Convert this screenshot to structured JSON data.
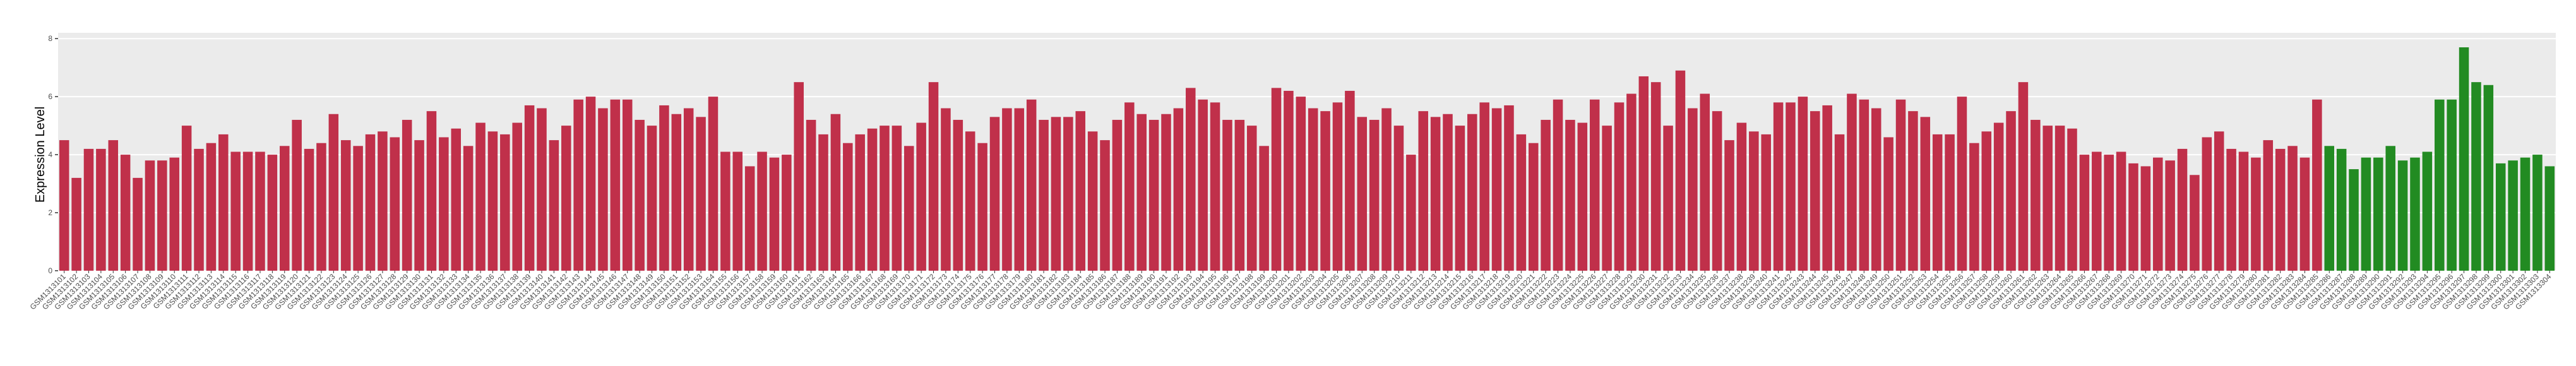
{
  "chart_data": {
    "type": "bar",
    "ylabel": "Expression Level",
    "categories": [
      "GSM1313101",
      "GSM1313102",
      "GSM1313103",
      "GSM1313104",
      "GSM1313105",
      "GSM1313106",
      "GSM1313107",
      "GSM1313108",
      "GSM1313109",
      "GSM1313110",
      "GSM1313111",
      "GSM1313112",
      "GSM1313113",
      "GSM1313114",
      "GSM1313115",
      "GSM1313116",
      "GSM1313117",
      "GSM1313118",
      "GSM1313119",
      "GSM1313120",
      "GSM1313121",
      "GSM1313122",
      "GSM1313123",
      "GSM1313124",
      "GSM1313125",
      "GSM1313126",
      "GSM1313127",
      "GSM1313128",
      "GSM1313129",
      "GSM1313130",
      "GSM1313131",
      "GSM1313132",
      "GSM1313133",
      "GSM1313134",
      "GSM1313135",
      "GSM1313136",
      "GSM1313137",
      "GSM1313138",
      "GSM1313139",
      "GSM1313140",
      "GSM1313141",
      "GSM1313142",
      "GSM1313143",
      "GSM1313144",
      "GSM1313145",
      "GSM1313146",
      "GSM1313147",
      "GSM1313148",
      "GSM1313149",
      "GSM1313150",
      "GSM1313151",
      "GSM1313152",
      "GSM1313153",
      "GSM1313154",
      "GSM1313155",
      "GSM1313156",
      "GSM1313157",
      "GSM1313158",
      "GSM1313159",
      "GSM1313160",
      "GSM1313161",
      "GSM1313162",
      "GSM1313163",
      "GSM1313164",
      "GSM1313165",
      "GSM1313166",
      "GSM1313167",
      "GSM1313168",
      "GSM1313169",
      "GSM1313170",
      "GSM1313171",
      "GSM1313172",
      "GSM1313173",
      "GSM1313174",
      "GSM1313175",
      "GSM1313176",
      "GSM1313177",
      "GSM1313178",
      "GSM1313179",
      "GSM1313180",
      "GSM1313181",
      "GSM1313182",
      "GSM1313183",
      "GSM1313184",
      "GSM1313185",
      "GSM1313186",
      "GSM1313187",
      "GSM1313188",
      "GSM1313189",
      "GSM1313190",
      "GSM1313191",
      "GSM1313192",
      "GSM1313193",
      "GSM1313194",
      "GSM1313195",
      "GSM1313196",
      "GSM1313197",
      "GSM1313198",
      "GSM1313199",
      "GSM1313200",
      "GSM1313201",
      "GSM1313202",
      "GSM1313203",
      "GSM1313204",
      "GSM1313205",
      "GSM1313206",
      "GSM1313207",
      "GSM1313208",
      "GSM1313209",
      "GSM1313210",
      "GSM1313211",
      "GSM1313212",
      "GSM1313213",
      "GSM1313214",
      "GSM1313215",
      "GSM1313216",
      "GSM1313217",
      "GSM1313218",
      "GSM1313219",
      "GSM1313220",
      "GSM1313221",
      "GSM1313222",
      "GSM1313223",
      "GSM1313224",
      "GSM1313225",
      "GSM1313226",
      "GSM1313227",
      "GSM1313228",
      "GSM1313229",
      "GSM1313230",
      "GSM1313231",
      "GSM1313232",
      "GSM1313233",
      "GSM1313234",
      "GSM1313235",
      "GSM1313236",
      "GSM1313237",
      "GSM1313238",
      "GSM1313239",
      "GSM1313240",
      "GSM1313241",
      "GSM1313242",
      "GSM1313243",
      "GSM1313244",
      "GSM1313245",
      "GSM1313246",
      "GSM1313247",
      "GSM1313248",
      "GSM1313249",
      "GSM1313250",
      "GSM1313251",
      "GSM1313252",
      "GSM1313253",
      "GSM1313254",
      "GSM1313255",
      "GSM1313256",
      "GSM1313257",
      "GSM1313258",
      "GSM1313259",
      "GSM1313260",
      "GSM1313261",
      "GSM1313262",
      "GSM1313263",
      "GSM1313264",
      "GSM1313265",
      "GSM1313266",
      "GSM1313267",
      "GSM1313268",
      "GSM1313269",
      "GSM1313270",
      "GSM1313271",
      "GSM1313272",
      "GSM1313273",
      "GSM1313274",
      "GSM1313275",
      "GSM1313276",
      "GSM1313277",
      "GSM1313278",
      "GSM1313279",
      "GSM1313280",
      "GSM1313281",
      "GSM1313282",
      "GSM1313283",
      "GSM1313284",
      "GSM1313285",
      "GSM1313286",
      "GSM1313287",
      "GSM1313288",
      "GSM1313289",
      "GSM1313290",
      "GSM1313291",
      "GSM1313292",
      "GSM1313293",
      "GSM1313294",
      "GSM1313295",
      "GSM1313296",
      "GSM1313297",
      "GSM1313298",
      "GSM1313299",
      "GSM1313300",
      "GSM1313301",
      "GSM1313302",
      "GSM1313303",
      "GSM1313304"
    ],
    "values": [
      4.5,
      3.2,
      4.2,
      4.2,
      4.5,
      4.0,
      3.2,
      3.8,
      3.8,
      3.9,
      5.0,
      4.2,
      4.4,
      4.7,
      4.1,
      4.1,
      4.1,
      4.0,
      4.3,
      5.2,
      4.2,
      4.4,
      5.4,
      4.5,
      4.3,
      4.7,
      4.8,
      4.6,
      5.2,
      4.5,
      5.5,
      4.6,
      4.9,
      4.3,
      5.1,
      4.8,
      4.7,
      5.1,
      5.7,
      5.6,
      4.5,
      5.0,
      5.9,
      6.0,
      5.6,
      5.9,
      5.9,
      5.2,
      5.0,
      5.7,
      5.4,
      5.6,
      5.3,
      6.0,
      4.1,
      4.1,
      3.6,
      4.1,
      3.9,
      4.0,
      6.5,
      5.2,
      4.7,
      5.4,
      4.4,
      4.7,
      4.9,
      5.0,
      5.0,
      4.3,
      5.1,
      6.5,
      5.6,
      5.2,
      4.8,
      4.4,
      5.3,
      5.6,
      5.6,
      5.9,
      5.2,
      5.3,
      5.3,
      5.5,
      4.8,
      4.5,
      5.2,
      5.8,
      5.4,
      5.2,
      5.4,
      5.6,
      6.3,
      5.9,
      5.8,
      5.2,
      5.2,
      5.0,
      4.3,
      6.3,
      6.2,
      6.0,
      5.6,
      5.5,
      5.8,
      6.2,
      5.3,
      5.2,
      5.6,
      5.0,
      4.0,
      5.5,
      5.3,
      5.4,
      5.0,
      5.4,
      5.8,
      5.6,
      5.7,
      4.7,
      4.4,
      5.2,
      5.9,
      5.2,
      5.1,
      5.9,
      5.0,
      5.8,
      6.1,
      6.7,
      6.5,
      5.0,
      6.9,
      5.6,
      6.1,
      5.5,
      4.5,
      5.1,
      4.8,
      4.7,
      5.8,
      5.8,
      6.0,
      5.5,
      5.7,
      4.7,
      6.1,
      5.9,
      5.6,
      4.6,
      5.9,
      5.5,
      5.3,
      4.7,
      4.7,
      6.0,
      4.4,
      4.8,
      5.1,
      5.5,
      6.5,
      5.2,
      5.0,
      5.0,
      4.9,
      4.0,
      4.1,
      4.0,
      4.1,
      3.7,
      3.6,
      3.9,
      3.8,
      4.2,
      3.3,
      4.6,
      4.8,
      4.2,
      4.1,
      3.9,
      4.5,
      4.2,
      4.3,
      3.9,
      5.9,
      4.3,
      4.2,
      3.5,
      3.9,
      3.9,
      4.3,
      3.8,
      3.9,
      4.1,
      5.9,
      5.9,
      7.7,
      6.5,
      6.4,
      3.7,
      3.8,
      3.9,
      4.0,
      3.6
    ],
    "colors": [
      "#c0304a",
      "#c0304a",
      "#c0304a",
      "#c0304a",
      "#c0304a",
      "#c0304a",
      "#c0304a",
      "#c0304a",
      "#c0304a",
      "#c0304a",
      "#c0304a",
      "#c0304a",
      "#c0304a",
      "#c0304a",
      "#c0304a",
      "#c0304a",
      "#c0304a",
      "#c0304a",
      "#c0304a",
      "#c0304a",
      "#c0304a",
      "#c0304a",
      "#c0304a",
      "#c0304a",
      "#c0304a",
      "#c0304a",
      "#c0304a",
      "#c0304a",
      "#c0304a",
      "#c0304a",
      "#c0304a",
      "#c0304a",
      "#c0304a",
      "#c0304a",
      "#c0304a",
      "#c0304a",
      "#c0304a",
      "#c0304a",
      "#c0304a",
      "#c0304a",
      "#c0304a",
      "#c0304a",
      "#c0304a",
      "#c0304a",
      "#c0304a",
      "#c0304a",
      "#c0304a",
      "#c0304a",
      "#c0304a",
      "#c0304a",
      "#c0304a",
      "#c0304a",
      "#c0304a",
      "#c0304a",
      "#c0304a",
      "#c0304a",
      "#c0304a",
      "#c0304a",
      "#c0304a",
      "#c0304a",
      "#c0304a",
      "#c0304a",
      "#c0304a",
      "#c0304a",
      "#c0304a",
      "#c0304a",
      "#c0304a",
      "#c0304a",
      "#c0304a",
      "#c0304a",
      "#c0304a",
      "#c0304a",
      "#c0304a",
      "#c0304a",
      "#c0304a",
      "#c0304a",
      "#c0304a",
      "#c0304a",
      "#c0304a",
      "#c0304a",
      "#c0304a",
      "#c0304a",
      "#c0304a",
      "#c0304a",
      "#c0304a",
      "#c0304a",
      "#c0304a",
      "#c0304a",
      "#c0304a",
      "#c0304a",
      "#c0304a",
      "#c0304a",
      "#c0304a",
      "#c0304a",
      "#c0304a",
      "#c0304a",
      "#c0304a",
      "#c0304a",
      "#c0304a",
      "#c0304a",
      "#c0304a",
      "#c0304a",
      "#c0304a",
      "#c0304a",
      "#c0304a",
      "#c0304a",
      "#c0304a",
      "#c0304a",
      "#c0304a",
      "#c0304a",
      "#c0304a",
      "#c0304a",
      "#c0304a",
      "#c0304a",
      "#c0304a",
      "#c0304a",
      "#c0304a",
      "#c0304a",
      "#c0304a",
      "#c0304a",
      "#c0304a",
      "#c0304a",
      "#c0304a",
      "#c0304a",
      "#c0304a",
      "#c0304a",
      "#c0304a",
      "#c0304a",
      "#c0304a",
      "#c0304a",
      "#c0304a",
      "#c0304a",
      "#c0304a",
      "#c0304a",
      "#c0304a",
      "#c0304a",
      "#c0304a",
      "#c0304a",
      "#c0304a",
      "#c0304a",
      "#c0304a",
      "#c0304a",
      "#c0304a",
      "#c0304a",
      "#c0304a",
      "#c0304a",
      "#c0304a",
      "#c0304a",
      "#c0304a",
      "#c0304a",
      "#c0304a",
      "#c0304a",
      "#c0304a",
      "#c0304a",
      "#c0304a",
      "#c0304a",
      "#c0304a",
      "#c0304a",
      "#c0304a",
      "#c0304a",
      "#c0304a",
      "#c0304a",
      "#c0304a",
      "#c0304a",
      "#c0304a",
      "#c0304a",
      "#c0304a",
      "#c0304a",
      "#c0304a",
      "#c0304a",
      "#c0304a",
      "#c0304a",
      "#c0304a",
      "#c0304a",
      "#c0304a",
      "#c0304a",
      "#c0304a",
      "#c0304a",
      "#c0304a",
      "#c0304a",
      "#c0304a",
      "#c0304a",
      "#c0304a",
      "#c0304a",
      "#c0304a",
      "#228b22",
      "#228b22",
      "#228b22",
      "#228b22",
      "#228b22",
      "#228b22",
      "#228b22",
      "#228b22",
      "#228b22",
      "#228b22",
      "#228b22",
      "#228b22",
      "#228b22",
      "#228b22",
      "#228b22",
      "#228b22",
      "#228b22",
      "#228b22",
      "#228b22",
      "#228b22",
      "#228b22"
    ],
    "ylim": [
      0,
      8.2
    ],
    "yticks": [
      0,
      2,
      4,
      6,
      8
    ],
    "grid": true,
    "background": "#ebebeb"
  }
}
